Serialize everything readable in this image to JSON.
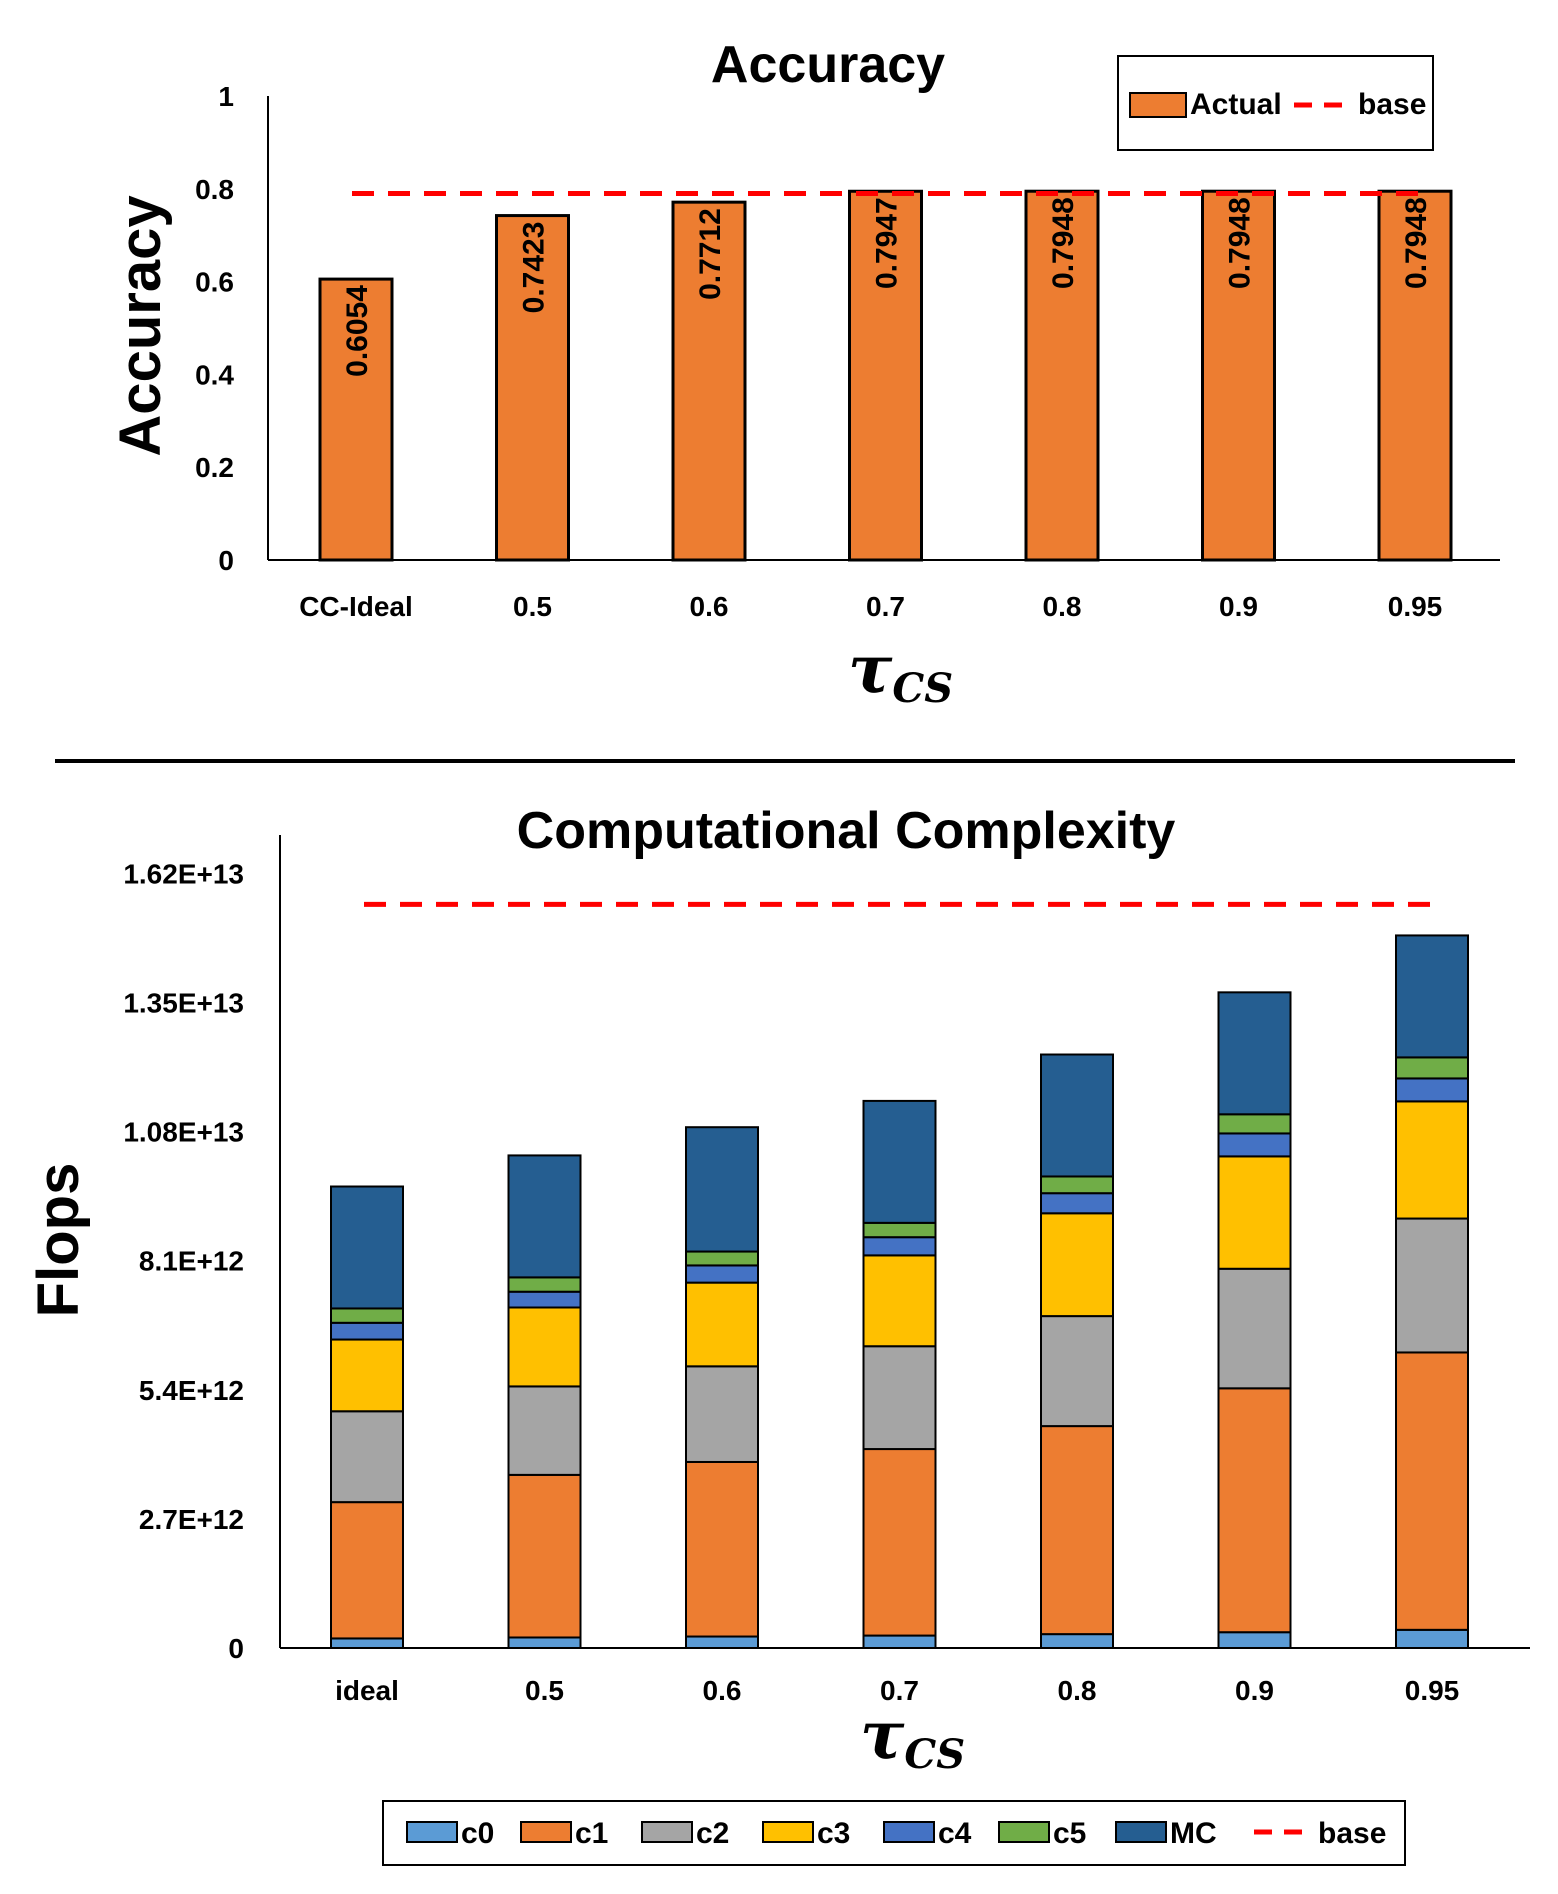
{
  "chart_data": [
    {
      "type": "bar",
      "title": "Accuracy",
      "ylabel": "Accuracy",
      "xlabel": {
        "main": "τ",
        "sub": "CS"
      },
      "categories": [
        "CC-Ideal",
        "0.5",
        "0.6",
        "0.7",
        "0.8",
        "0.9",
        "0.95"
      ],
      "series": [
        {
          "name": "Actual",
          "color": "#ED7D31",
          "values": [
            0.6054,
            0.7423,
            0.7712,
            0.7947,
            0.7948,
            0.7948,
            0.7948
          ]
        }
      ],
      "data_labels": [
        "0.6054",
        "0.7423",
        "0.7712",
        "0.7947",
        "0.7948",
        "0.7948",
        "0.7948"
      ],
      "reference_line": {
        "name": "base",
        "value": 0.79,
        "color": "#FF0000",
        "style": "dashed"
      },
      "ylim": [
        0,
        1
      ],
      "yticks": [
        0,
        0.2,
        0.4,
        0.6,
        0.8,
        1
      ],
      "ytick_labels": [
        "0",
        "0.2",
        "0.4",
        "0.6",
        "0.8",
        "1"
      ],
      "grid": false,
      "legend_position": "top-right",
      "legend": [
        "Actual",
        "base"
      ]
    },
    {
      "type": "bar",
      "stacked": true,
      "title": "Computational Complexity",
      "ylabel": "Flops",
      "xlabel": {
        "main": "τ",
        "sub": "CS"
      },
      "categories": [
        "ideal",
        "0.5",
        "0.6",
        "0.7",
        "0.8",
        "0.9",
        "0.95"
      ],
      "series": [
        {
          "name": "c0",
          "color": "#5B9BD5",
          "values": [
            200000000000.0,
            220000000000.0,
            240000000000.0,
            260000000000.0,
            290000000000.0,
            330000000000.0,
            380000000000.0
          ]
        },
        {
          "name": "c1",
          "color": "#ED7D31",
          "values": [
            2850000000000.0,
            3400000000000.0,
            3650000000000.0,
            3900000000000.0,
            4350000000000.0,
            5100000000000.0,
            5800000000000.0
          ]
        },
        {
          "name": "c2",
          "color": "#A5A5A5",
          "values": [
            1900000000000.0,
            1850000000000.0,
            2000000000000.0,
            2150000000000.0,
            2300000000000.0,
            2500000000000.0,
            2800000000000.0
          ]
        },
        {
          "name": "c3",
          "color": "#FFC000",
          "values": [
            1500000000000.0,
            1650000000000.0,
            1750000000000.0,
            1900000000000.0,
            2150000000000.0,
            2350000000000.0,
            2450000000000.0
          ]
        },
        {
          "name": "c4",
          "color": "#4472C4",
          "values": [
            350000000000.0,
            330000000000.0,
            360000000000.0,
            380000000000.0,
            420000000000.0,
            480000000000.0,
            480000000000.0
          ]
        },
        {
          "name": "c5",
          "color": "#70AD47",
          "values": [
            300000000000.0,
            300000000000.0,
            290000000000.0,
            300000000000.0,
            350000000000.0,
            400000000000.0,
            440000000000.0
          ]
        },
        {
          "name": "MC",
          "color": "#255E91",
          "values": [
            2550000000000.0,
            2550000000000.0,
            2600000000000.0,
            2550000000000.0,
            2550000000000.0,
            2550000000000.0,
            2550000000000.0
          ]
        }
      ],
      "reference_line": {
        "name": "base",
        "value": 15550000000000.0,
        "color": "#FF0000",
        "style": "dashed"
      },
      "ylim": [
        0,
        17000000000000.0
      ],
      "yticks": [
        0,
        2700000000000.0,
        5400000000000.0,
        8100000000000.0,
        10800000000000.0,
        13500000000000.0,
        16200000000000.0
      ],
      "ytick_labels": [
        "0",
        "2.7E+12",
        "5.4E+12",
        "8.1E+12",
        "1.08E+13",
        "1.35E+13",
        "1.62E+13"
      ],
      "grid": false,
      "legend_position": "bottom",
      "legend": [
        "c0",
        "c1",
        "c2",
        "c3",
        "c4",
        "c5",
        "MC",
        "base"
      ]
    }
  ]
}
